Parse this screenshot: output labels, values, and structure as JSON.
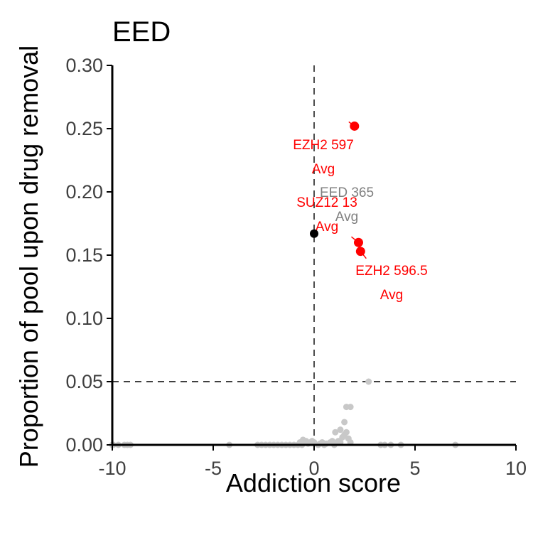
{
  "chart_data": {
    "type": "scatter",
    "title": "EED",
    "xlabel": "Addiction score",
    "ylabel": "Proportion of pool upon drug removal",
    "xlim": [
      -10,
      10
    ],
    "ylim": [
      0,
      0.3
    ],
    "x_ticks": [
      "-10",
      "-5",
      "0",
      "5",
      "10"
    ],
    "y_ticks": [
      "0.00",
      "0.05",
      "0.10",
      "0.15",
      "0.20",
      "0.25",
      "0.30"
    ],
    "reference_lines": {
      "x": 0,
      "y": 0.05,
      "style": "dashed"
    },
    "colors": {
      "background_points": "#c8c8c8",
      "highlight": "#ff0000",
      "reference": "#000000",
      "label_grey": "#808080"
    },
    "background_points": [
      [
        -10,
        0.0
      ],
      [
        -9.7,
        0.0
      ],
      [
        -9.4,
        0.0
      ],
      [
        -9.1,
        0.0
      ],
      [
        -9.95,
        0.0
      ],
      [
        -9.25,
        0.0
      ],
      [
        -4.2,
        0.0
      ],
      [
        -2.8,
        0.0
      ],
      [
        -2.6,
        0.0
      ],
      [
        -2.4,
        0.0
      ],
      [
        -2.2,
        0.0
      ],
      [
        -2.0,
        0.0
      ],
      [
        -1.8,
        0.0
      ],
      [
        -1.6,
        0.0
      ],
      [
        -1.4,
        0.0
      ],
      [
        -1.2,
        0.0
      ],
      [
        -1.0,
        0.0
      ],
      [
        -0.8,
        0.0
      ],
      [
        -0.6,
        0.0
      ],
      [
        -0.4,
        0.003
      ],
      [
        -0.3,
        0.001
      ],
      [
        -0.2,
        0.002
      ],
      [
        -0.1,
        0.003
      ],
      [
        0.0,
        0.002
      ],
      [
        0.2,
        0.0
      ],
      [
        0.3,
        0.001
      ],
      [
        0.4,
        0.002
      ],
      [
        0.5,
        0.0
      ],
      [
        0.6,
        0.001
      ],
      [
        0.8,
        0.002
      ],
      [
        0.9,
        0.003
      ],
      [
        1.0,
        0.0
      ],
      [
        1.05,
        0.01
      ],
      [
        1.2,
        0.003
      ],
      [
        1.3,
        0.002
      ],
      [
        1.4,
        0.006
      ],
      [
        1.5,
        0.008
      ],
      [
        1.6,
        0.01
      ],
      [
        1.7,
        0.005
      ],
      [
        1.8,
        0.002
      ],
      [
        1.3,
        0.012
      ],
      [
        1.5,
        0.018
      ],
      [
        1.6,
        0.03
      ],
      [
        1.8,
        0.03
      ],
      [
        -0.7,
        0.002
      ],
      [
        -0.55,
        0.004
      ],
      [
        2.7,
        0.05
      ],
      [
        3.3,
        0.0
      ],
      [
        3.5,
        0.0
      ],
      [
        3.8,
        0.0
      ],
      [
        4.3,
        0.0
      ],
      [
        7.0,
        0.0
      ]
    ],
    "highlighted_points": [
      {
        "x": 2.0,
        "y": 0.252,
        "line1": "EZH2 597",
        "line2": "Avg",
        "color": "#ff0000"
      },
      {
        "x": 2.2,
        "y": 0.16,
        "line1": "SUZ12 13",
        "line2": "Avg",
        "color": "#ff0000"
      },
      {
        "x": 2.3,
        "y": 0.153,
        "line1": "EZH2 596.5",
        "line2": "Avg",
        "color": "#ff0000"
      }
    ],
    "reference_point": {
      "x": 0,
      "y": 0.167,
      "line1": "EED 365",
      "line2": "Avg",
      "color": "#000000"
    }
  }
}
